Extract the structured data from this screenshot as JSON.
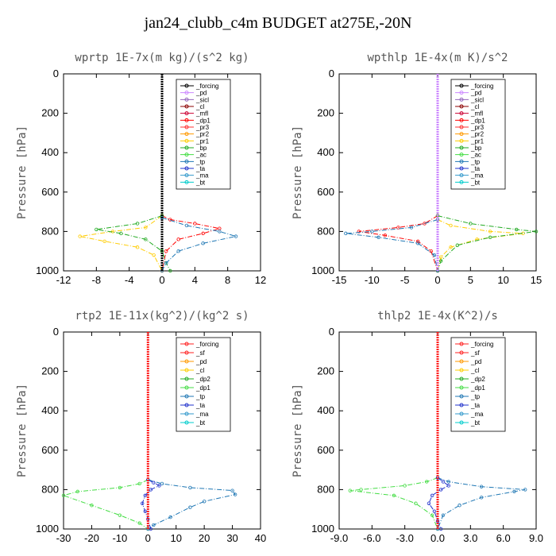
{
  "title": "jan24_clubb_c4m  BUDGET at275E,-20N",
  "chart_data": [
    {
      "type": "line",
      "title": "wprtp  1E-7x(m kg)/(s^2 kg)",
      "ylabel": "Pressure [hPa]",
      "ylim": [
        1000,
        0
      ],
      "yticks": [
        0,
        200,
        400,
        600,
        800,
        1000
      ],
      "xlim": [
        -12,
        12
      ],
      "xticks": [
        "-12",
        "-8",
        "-4",
        "0",
        "4",
        "8",
        "12"
      ],
      "xtick_values": [
        -12,
        -8,
        -4,
        0,
        4,
        8,
        12
      ],
      "legend": [
        "_forcing",
        "_pd",
        "_sicl",
        "_cl",
        "_mfl",
        "_dp1",
        "_pr3",
        "_pr2",
        "_pr1",
        "_bp",
        "_ac",
        "_tp",
        "_ta",
        "_ma",
        "_bt"
      ],
      "series": [
        {
          "name": "_dp1",
          "color": "#ff0000",
          "points": [
            [
              0,
              720
            ],
            [
              1,
              740
            ],
            [
              4,
              760
            ],
            [
              7,
              785
            ],
            [
              5,
              810
            ],
            [
              2,
              840
            ],
            [
              0.5,
              900
            ],
            [
              0,
              1000
            ]
          ]
        },
        {
          "name": "_pr1",
          "color": "#ffcc00",
          "points": [
            [
              0,
              720
            ],
            [
              -2,
              780
            ],
            [
              -6,
              800
            ],
            [
              -10,
              825
            ],
            [
              -7,
              850
            ],
            [
              -3,
              880
            ],
            [
              -1,
              920
            ],
            [
              0,
              1000
            ]
          ]
        },
        {
          "name": "_bp",
          "color": "#22aa22",
          "points": [
            [
              0,
              720
            ],
            [
              -3,
              760
            ],
            [
              -8,
              790
            ],
            [
              -5,
              810
            ],
            [
              -2,
              840
            ],
            [
              0,
              900
            ],
            [
              0.5,
              960
            ],
            [
              1,
              1000
            ]
          ]
        },
        {
          "name": "_tp",
          "color": "#1f77b4",
          "points": [
            [
              0,
              730
            ],
            [
              3,
              770
            ],
            [
              7,
              800
            ],
            [
              9,
              825
            ],
            [
              5,
              860
            ],
            [
              2,
              900
            ],
            [
              0.5,
              960
            ],
            [
              0,
              1000
            ]
          ]
        },
        {
          "name": "_forcing",
          "color": "#000000",
          "points": [
            [
              0,
              0
            ],
            [
              0,
              1000
            ]
          ]
        }
      ]
    },
    {
      "type": "line",
      "title": "wpthlp  1E-4x(m K)/s^2",
      "ylabel": "Pressure [hPa]",
      "ylim": [
        1000,
        0
      ],
      "yticks": [
        0,
        200,
        400,
        600,
        800,
        1000
      ],
      "xlim": [
        -15,
        15
      ],
      "xticks": [
        "-15",
        "-10",
        "-5",
        "0",
        "5",
        "10",
        "15"
      ],
      "xtick_values": [
        -15,
        -10,
        -5,
        0,
        5,
        10,
        15
      ],
      "legend": [
        "_forcing",
        "_pd",
        "_sicl",
        "_cl",
        "_mfl",
        "_dp1",
        "_pr3",
        "_pr2",
        "_pr1",
        "_bp",
        "_ac",
        "_tp",
        "_ta",
        "_ma",
        "_bt"
      ],
      "series": [
        {
          "name": "_dp1",
          "color": "#ff0000",
          "points": [
            [
              0,
              720
            ],
            [
              -2,
              760
            ],
            [
              -6,
              780
            ],
            [
              -12,
              800
            ],
            [
              -8,
              820
            ],
            [
              -3,
              850
            ],
            [
              -1,
              900
            ],
            [
              0,
              1000
            ]
          ]
        },
        {
          "name": "_pr1",
          "color": "#ffcc00",
          "points": [
            [
              0,
              740
            ],
            [
              2,
              770
            ],
            [
              8,
              800
            ],
            [
              13,
              810
            ],
            [
              6,
              840
            ],
            [
              2,
              880
            ],
            [
              0.5,
              930
            ],
            [
              0,
              1000
            ]
          ]
        },
        {
          "name": "_bp",
          "color": "#22aa22",
          "points": [
            [
              0,
              720
            ],
            [
              5,
              760
            ],
            [
              12,
              790
            ],
            [
              15,
              800
            ],
            [
              8,
              830
            ],
            [
              3,
              870
            ],
            [
              0.5,
              950
            ],
            [
              0,
              1000
            ]
          ]
        },
        {
          "name": "_tp",
          "color": "#1f77b4",
          "points": [
            [
              0,
              740
            ],
            [
              -4,
              780
            ],
            [
              -10,
              800
            ],
            [
              -14,
              810
            ],
            [
              -9,
              830
            ],
            [
              -3,
              860
            ],
            [
              -0.5,
              920
            ],
            [
              0,
              1000
            ]
          ]
        },
        {
          "name": "_sicl",
          "color": "#9467bd",
          "points": [
            [
              0,
              0
            ],
            [
              0,
              1000
            ]
          ]
        },
        {
          "name": "_forcing",
          "color": "#cc88ff",
          "points": [
            [
              0,
              0
            ],
            [
              0,
              1000
            ]
          ]
        }
      ]
    },
    {
      "type": "line",
      "title": "rtp2  1E-11x(kg^2)/(kg^2 s)",
      "ylabel": "Pressure [hPa]",
      "ylim": [
        1000,
        0
      ],
      "yticks": [
        0,
        200,
        400,
        600,
        800,
        1000
      ],
      "xlim": [
        -30,
        40
      ],
      "xticks": [
        "-30",
        "-20",
        "-10",
        "0",
        "10",
        "20",
        "30",
        "40"
      ],
      "xtick_values": [
        -30,
        -20,
        -10,
        0,
        10,
        20,
        30,
        40
      ],
      "legend": [
        "_forcing",
        "_sf",
        "_pd",
        "_cl",
        "_dp2",
        "_dp1",
        "_tp",
        "_ta",
        "_ma",
        "_bt"
      ],
      "series": [
        {
          "name": "_dp1",
          "color": "#44dd44",
          "points": [
            [
              0,
              750
            ],
            [
              -3,
              770
            ],
            [
              -10,
              790
            ],
            [
              -25,
              810
            ],
            [
              -30,
              830
            ],
            [
              -20,
              880
            ],
            [
              -10,
              930
            ],
            [
              -3,
              970
            ],
            [
              0,
              1000
            ]
          ]
        },
        {
          "name": "_tp",
          "color": "#1f77b4",
          "points": [
            [
              0,
              750
            ],
            [
              5,
              770
            ],
            [
              15,
              790
            ],
            [
              30,
              805
            ],
            [
              31,
              825
            ],
            [
              20,
              860
            ],
            [
              15,
              890
            ],
            [
              8,
              940
            ],
            [
              2,
              980
            ],
            [
              0,
              1000
            ]
          ]
        },
        {
          "name": "_ta",
          "color": "#2233cc",
          "points": [
            [
              0,
              750
            ],
            [
              2,
              765
            ],
            [
              4,
              780
            ],
            [
              1,
              800
            ],
            [
              -1,
              830
            ],
            [
              -2,
              870
            ],
            [
              -1,
              910
            ],
            [
              0,
              950
            ],
            [
              1,
              1000
            ]
          ]
        },
        {
          "name": "_forcing",
          "color": "#ff2222",
          "points": [
            [
              0,
              0
            ],
            [
              0,
              1000
            ]
          ]
        }
      ]
    },
    {
      "type": "line",
      "title": "thlp2  1E-4x(K^2)/s",
      "ylabel": "Pressure [hPa]",
      "ylim": [
        1000,
        0
      ],
      "yticks": [
        0,
        200,
        400,
        600,
        800,
        1000
      ],
      "xlim": [
        -9,
        9
      ],
      "xticks": [
        "-9.0",
        "-6.0",
        "-3.0",
        "0.0",
        "3.0",
        "6.0",
        "9.0"
      ],
      "xtick_values": [
        -9,
        -6,
        -3,
        0,
        3,
        6,
        9
      ],
      "legend": [
        "_forcing",
        "_sf",
        "_pd",
        "_cl",
        "_dp2",
        "_dp1",
        "_tp",
        "_ta",
        "_ma",
        "_bt"
      ],
      "series": [
        {
          "name": "_dp1",
          "color": "#44dd44",
          "points": [
            [
              0,
              740
            ],
            [
              -1,
              760
            ],
            [
              -3,
              780
            ],
            [
              -7,
              800
            ],
            [
              -8,
              805
            ],
            [
              -4,
              830
            ],
            [
              -2,
              870
            ],
            [
              -0.5,
              930
            ],
            [
              0,
              1000
            ]
          ]
        },
        {
          "name": "_tp",
          "color": "#1f77b4",
          "points": [
            [
              0,
              740
            ],
            [
              1,
              760
            ],
            [
              4,
              785
            ],
            [
              8,
              800
            ],
            [
              7,
              810
            ],
            [
              4,
              840
            ],
            [
              2,
              880
            ],
            [
              0.5,
              930
            ],
            [
              0,
              1000
            ]
          ]
        },
        {
          "name": "_ta",
          "color": "#2233cc",
          "points": [
            [
              0,
              740
            ],
            [
              0.5,
              760
            ],
            [
              1,
              780
            ],
            [
              0.3,
              800
            ],
            [
              -0.5,
              830
            ],
            [
              -0.8,
              870
            ],
            [
              -0.3,
              910
            ],
            [
              0,
              960
            ],
            [
              0.3,
              1000
            ]
          ]
        },
        {
          "name": "_forcing",
          "color": "#ff2222",
          "points": [
            [
              0,
              0
            ],
            [
              0,
              1000
            ]
          ]
        }
      ]
    }
  ]
}
